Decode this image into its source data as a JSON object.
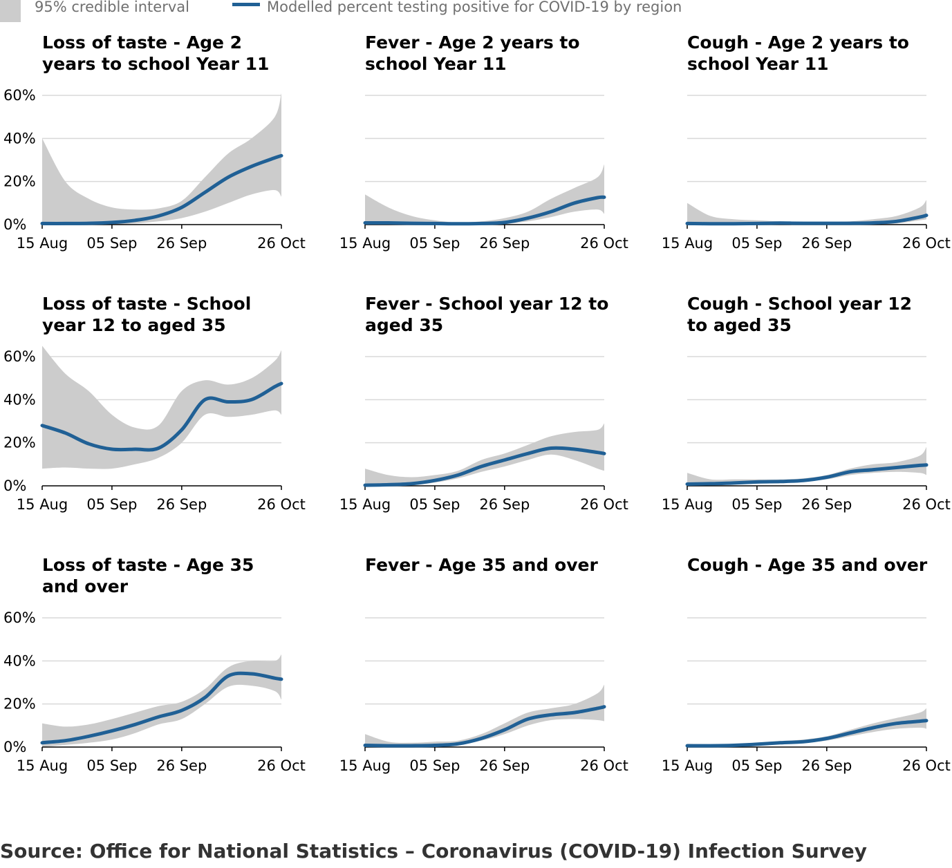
{
  "legend": {
    "interval_label": "95% credible interval",
    "line_label": "Modelled percent testing positive for COVID-19 by region"
  },
  "colors": {
    "line": "#206095",
    "band": "#cccccc",
    "grid": "#d9d9d9",
    "axis": "#000000"
  },
  "source": "Source: Office for National Statistics – Coronavirus (COVID-19) Infection Survey",
  "chart_data": [
    {
      "type": "line",
      "title_lines": [
        "Loss of taste - Age 2",
        "years to school Year 11"
      ],
      "x": [
        0,
        7,
        14,
        21,
        28,
        35,
        42,
        49,
        56,
        63,
        70,
        72
      ],
      "y": [
        0.5,
        0.5,
        0.6,
        1,
        2,
        4,
        8,
        15,
        22,
        27,
        31,
        32
      ],
      "lower": [
        0,
        0,
        0,
        0,
        0.5,
        1.5,
        3,
        6,
        10,
        14,
        16,
        13
      ],
      "upper": [
        40,
        20,
        12,
        8,
        7,
        7.5,
        11,
        22,
        33,
        40,
        50,
        61
      ],
      "x_ticks": [
        "15 Aug",
        "05 Sep",
        "26 Sep",
        "26 Oct"
      ],
      "y_ticks": [
        "0%",
        "20%",
        "40%",
        "60%"
      ],
      "ylim": [
        0,
        60
      ],
      "show_y_labels": true
    },
    {
      "type": "line",
      "title_lines": [
        "Fever - Age 2 years to",
        "school Year 11"
      ],
      "x": [
        0,
        7,
        14,
        21,
        28,
        35,
        42,
        49,
        56,
        63,
        70,
        72
      ],
      "y": [
        0.8,
        0.8,
        0.6,
        0.5,
        0.4,
        0.5,
        1,
        3,
        6,
        10,
        12.5,
        12.7
      ],
      "lower": [
        0,
        0,
        0,
        0,
        0,
        0,
        0.3,
        1.5,
        3.5,
        6,
        7,
        5
      ],
      "upper": [
        14,
        8,
        4,
        2,
        1,
        1.5,
        3,
        6,
        12,
        17,
        22,
        28
      ],
      "x_ticks": [
        "15 Aug",
        "05 Sep",
        "26 Sep",
        "26 Oct"
      ],
      "y_ticks": [
        "0%",
        "20%",
        "40%",
        "60%"
      ],
      "ylim": [
        0,
        60
      ],
      "show_y_labels": false
    },
    {
      "type": "line",
      "title_lines": [
        "Cough - Age 2 years to",
        "school Year 11"
      ],
      "x": [
        0,
        7,
        14,
        21,
        28,
        35,
        42,
        49,
        56,
        63,
        70,
        72
      ],
      "y": [
        0.5,
        0.4,
        0.4,
        0.5,
        0.7,
        0.6,
        0.6,
        0.6,
        0.8,
        1.5,
        3.5,
        4.3
      ],
      "lower": [
        0,
        0,
        0,
        0,
        0,
        0,
        0,
        0,
        0.2,
        0.5,
        2,
        2.5
      ],
      "upper": [
        10,
        4,
        2.5,
        2,
        1.5,
        1.3,
        1.2,
        1.5,
        2.5,
        4,
        8,
        11.5
      ],
      "x_ticks": [
        "15 Aug",
        "05 Sep",
        "26 Sep",
        "26 Oct"
      ],
      "y_ticks": [
        "0%",
        "20%",
        "40%",
        "60%"
      ],
      "ylim": [
        0,
        60
      ],
      "show_y_labels": false
    },
    {
      "type": "line",
      "title_lines": [
        "Loss of taste - School",
        "year 12 to aged 35"
      ],
      "x": [
        0,
        7,
        14,
        21,
        28,
        35,
        42,
        49,
        56,
        63,
        70,
        72
      ],
      "y": [
        28,
        24.5,
        19.5,
        17,
        17,
        17.5,
        26,
        40,
        39,
        40,
        46,
        47.5
      ],
      "lower": [
        8,
        8.5,
        8,
        8,
        10,
        13,
        20,
        33,
        32,
        33,
        35,
        33
      ],
      "upper": [
        65,
        52,
        44,
        33,
        27,
        28,
        44,
        49,
        47,
        50,
        58,
        63
      ],
      "x_ticks": [
        "15 Aug",
        "05 Sep",
        "26 Sep",
        "26 Oct"
      ],
      "y_ticks": [
        "0%",
        "20%",
        "40%",
        "60%"
      ],
      "ylim": [
        0,
        60
      ],
      "show_y_labels": true
    },
    {
      "type": "line",
      "title_lines": [
        "Fever - School year 12 to",
        "aged 35"
      ],
      "x": [
        0,
        7,
        14,
        21,
        28,
        35,
        42,
        49,
        56,
        63,
        70,
        72
      ],
      "y": [
        0.3,
        0.5,
        1,
        2.5,
        5,
        9,
        12,
        15,
        17.5,
        17,
        15.5,
        15
      ],
      "lower": [
        0,
        0,
        0.3,
        1.5,
        3.5,
        6.5,
        9,
        12,
        14.5,
        12,
        8,
        7
      ],
      "upper": [
        8,
        5,
        4,
        5,
        7,
        12,
        15,
        19,
        23,
        25,
        26,
        29
      ],
      "x_ticks": [
        "15 Aug",
        "05 Sep",
        "26 Sep",
        "26 Oct"
      ],
      "y_ticks": [
        "0%",
        "20%",
        "40%",
        "60%"
      ],
      "ylim": [
        0,
        60
      ],
      "show_y_labels": false
    },
    {
      "type": "line",
      "title_lines": [
        "Cough - School year 12",
        "to aged 35"
      ],
      "x": [
        0,
        7,
        14,
        21,
        28,
        35,
        42,
        49,
        56,
        63,
        70,
        72
      ],
      "y": [
        0.8,
        1,
        1.3,
        1.8,
        2,
        2.5,
        4,
        6.5,
        7.5,
        8.5,
        9.5,
        9.7
      ],
      "lower": [
        0,
        0.3,
        0.6,
        1,
        1.5,
        2,
        3,
        5,
        6,
        6.5,
        6,
        5
      ],
      "upper": [
        6,
        3,
        3,
        3,
        3,
        3.5,
        5,
        8,
        10,
        11,
        14,
        18
      ],
      "x_ticks": [
        "15 Aug",
        "05 Sep",
        "26 Sep",
        "26 Oct"
      ],
      "y_ticks": [
        "0%",
        "20%",
        "40%",
        "60%"
      ],
      "ylim": [
        0,
        60
      ],
      "show_y_labels": false
    },
    {
      "type": "line",
      "title_lines": [
        "Loss of taste - Age 35",
        "and over"
      ],
      "x": [
        0,
        7,
        14,
        21,
        28,
        35,
        42,
        49,
        56,
        63,
        70,
        72
      ],
      "y": [
        2,
        3,
        5,
        7.5,
        10.5,
        14,
        17,
        23,
        33,
        34,
        32,
        31.5
      ],
      "lower": [
        0,
        1,
        2,
        3.5,
        6.5,
        10.5,
        13,
        20,
        28,
        28.5,
        26,
        22
      ],
      "upper": [
        11,
        9.5,
        10.5,
        13,
        16,
        19,
        21,
        27,
        37,
        40,
        40,
        43
      ],
      "x_ticks": [
        "15 Aug",
        "05 Sep",
        "26 Sep",
        "26 Oct"
      ],
      "y_ticks": [
        "0%",
        "20%",
        "40%",
        "60%"
      ],
      "ylim": [
        0,
        60
      ],
      "show_y_labels": true
    },
    {
      "type": "line",
      "title_lines": [
        "Fever - Age 35 and over"
      ],
      "x": [
        0,
        7,
        14,
        21,
        28,
        35,
        42,
        49,
        56,
        63,
        70,
        72
      ],
      "y": [
        0.8,
        0.6,
        0.6,
        0.8,
        1.5,
        4,
        8,
        13,
        15,
        16,
        18,
        18.7
      ],
      "lower": [
        0,
        0,
        0.1,
        0.3,
        1,
        3,
        6,
        10,
        12.5,
        13,
        12.5,
        12
      ],
      "upper": [
        6,
        2.5,
        2,
        2.5,
        3,
        6,
        11,
        16,
        18,
        20,
        25,
        29
      ],
      "x_ticks": [
        "15 Aug",
        "05 Sep",
        "26 Sep",
        "26 Oct"
      ],
      "y_ticks": [
        "0%",
        "20%",
        "40%",
        "60%"
      ],
      "ylim": [
        0,
        60
      ],
      "show_y_labels": false
    },
    {
      "type": "line",
      "title_lines": [
        "Cough - Age 35 and over"
      ],
      "x": [
        0,
        7,
        14,
        21,
        28,
        35,
        42,
        49,
        56,
        63,
        70,
        72
      ],
      "y": [
        0.6,
        0.6,
        0.8,
        1.3,
        2,
        2.5,
        4,
        6.5,
        9,
        11,
        12,
        12.3
      ],
      "lower": [
        0,
        0.1,
        0.4,
        0.8,
        1.3,
        2,
        3,
        5,
        7,
        8.5,
        9,
        8.5
      ],
      "upper": [
        1.5,
        1.3,
        1.5,
        2,
        2.8,
        3.5,
        5,
        8,
        11,
        13.5,
        16,
        18
      ],
      "x_ticks": [
        "15 Aug",
        "05 Sep",
        "26 Sep",
        "26 Oct"
      ],
      "y_ticks": [
        "0%",
        "20%",
        "40%",
        "60%"
      ],
      "ylim": [
        0,
        60
      ],
      "show_y_labels": false
    }
  ]
}
